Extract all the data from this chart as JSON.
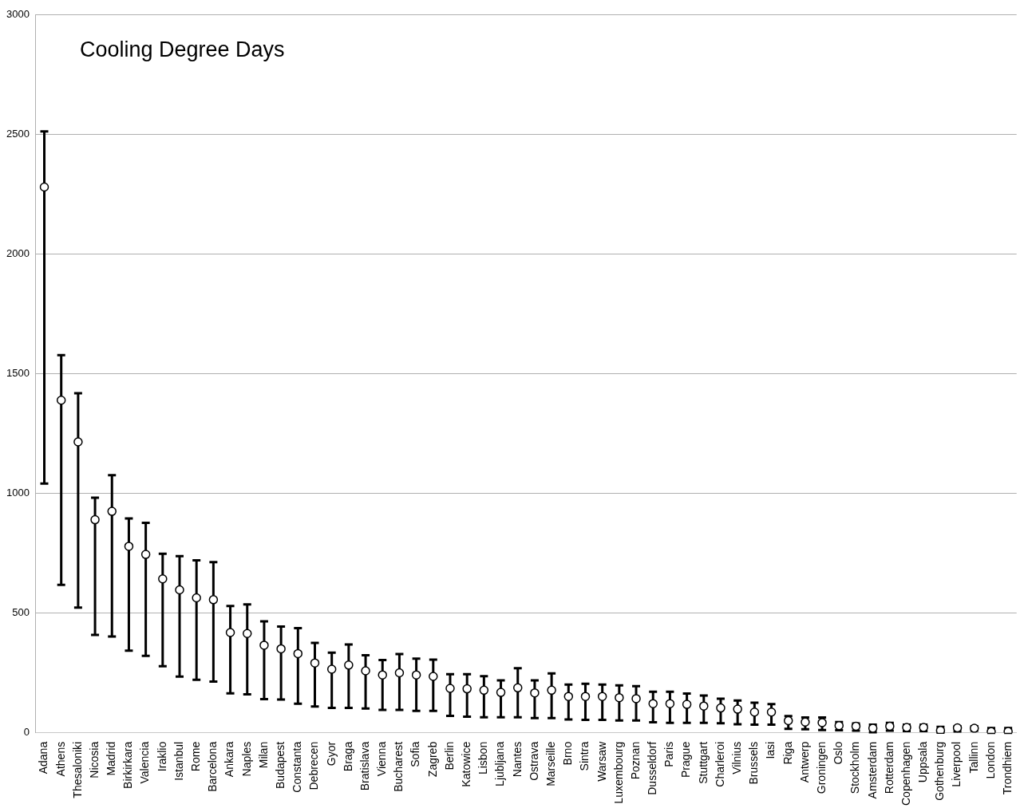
{
  "chart_data": {
    "type": "scatter",
    "title": "Cooling Degree Days",
    "categories": [
      "Adana",
      "Athens",
      "Thesaloniki",
      "Nicosia",
      "Madrid",
      "Birkirkara",
      "Valencia",
      "Iraklio",
      "Istanbul",
      "Rome",
      "Barcelona",
      "Ankara",
      "Naples",
      "Milan",
      "Budapest",
      "Constanta",
      "Debrecen",
      "Gyor",
      "Braga",
      "Bratislava",
      "Vienna",
      "Bucharest",
      "Sofia",
      "Zagreb",
      "Berlin",
      "Katowice",
      "Lisbon",
      "Ljubljana",
      "Nantes",
      "Ostrava",
      "Marseille",
      "Brno",
      "Sintra",
      "Warsaw",
      "Luxembourg",
      "Poznan",
      "Dusseldorf",
      "Paris",
      "Prague",
      "Stuttgart",
      "Charleroi",
      "Vilnius",
      "Brussels",
      "Iasi",
      "Riga",
      "Antwerp",
      "Groningen",
      "Oslo",
      "Stockholm",
      "Amsterdam",
      "Rotterdam",
      "Copenhagen",
      "Uppsala",
      "Gothenburg",
      "Liverpool",
      "Tallinn",
      "London",
      "Trondhiem"
    ],
    "values": [
      2279,
      1389,
      1215,
      890,
      925,
      779,
      745,
      643,
      597,
      564,
      556,
      419,
      415,
      366,
      351,
      331,
      292,
      266,
      283,
      259,
      242,
      251,
      242,
      236,
      186,
      184,
      178,
      169,
      188,
      167,
      178,
      152,
      152,
      152,
      147,
      143,
      122,
      122,
      119,
      112,
      104,
      99,
      87,
      87,
      51,
      45,
      43,
      30,
      28,
      19,
      28,
      23,
      23,
      10,
      21,
      19,
      5,
      6
    ],
    "errors": [
      [
        1041,
        2511
      ],
      [
        618,
        1577
      ],
      [
        523,
        1418
      ],
      [
        409,
        982
      ],
      [
        402,
        1076
      ],
      [
        343,
        895
      ],
      [
        322,
        877
      ],
      [
        278,
        748
      ],
      [
        235,
        738
      ],
      [
        222,
        720
      ],
      [
        214,
        713
      ],
      [
        165,
        530
      ],
      [
        161,
        536
      ],
      [
        141,
        466
      ],
      [
        139,
        444
      ],
      [
        122,
        437
      ],
      [
        110,
        376
      ],
      [
        104,
        335
      ],
      [
        104,
        369
      ],
      [
        102,
        324
      ],
      [
        96,
        304
      ],
      [
        96,
        329
      ],
      [
        92,
        310
      ],
      [
        92,
        306
      ],
      [
        71,
        245
      ],
      [
        68,
        245
      ],
      [
        65,
        237
      ],
      [
        65,
        219
      ],
      [
        65,
        270
      ],
      [
        62,
        219
      ],
      [
        62,
        248
      ],
      [
        56,
        202
      ],
      [
        54,
        205
      ],
      [
        54,
        202
      ],
      [
        52,
        198
      ],
      [
        52,
        195
      ],
      [
        44,
        172
      ],
      [
        42,
        172
      ],
      [
        42,
        164
      ],
      [
        42,
        156
      ],
      [
        40,
        143
      ],
      [
        36,
        135
      ],
      [
        34,
        126
      ],
      [
        34,
        120
      ],
      [
        17,
        70
      ],
      [
        15,
        64
      ],
      [
        12,
        64
      ],
      [
        11,
        45
      ],
      [
        9,
        39
      ],
      [
        3,
        34
      ],
      [
        9,
        42
      ],
      [
        8,
        34
      ],
      [
        8,
        34
      ],
      [
        1,
        25
      ],
      [
        6,
        28
      ],
      [
        9,
        28
      ],
      [
        0,
        20
      ],
      [
        0,
        20
      ]
    ],
    "color": "#000000",
    "marker": "circle",
    "ylim": [
      0,
      3000
    ],
    "yticks": [
      0,
      500,
      1000,
      1500,
      2000,
      2500,
      3000
    ],
    "grid": "y"
  }
}
